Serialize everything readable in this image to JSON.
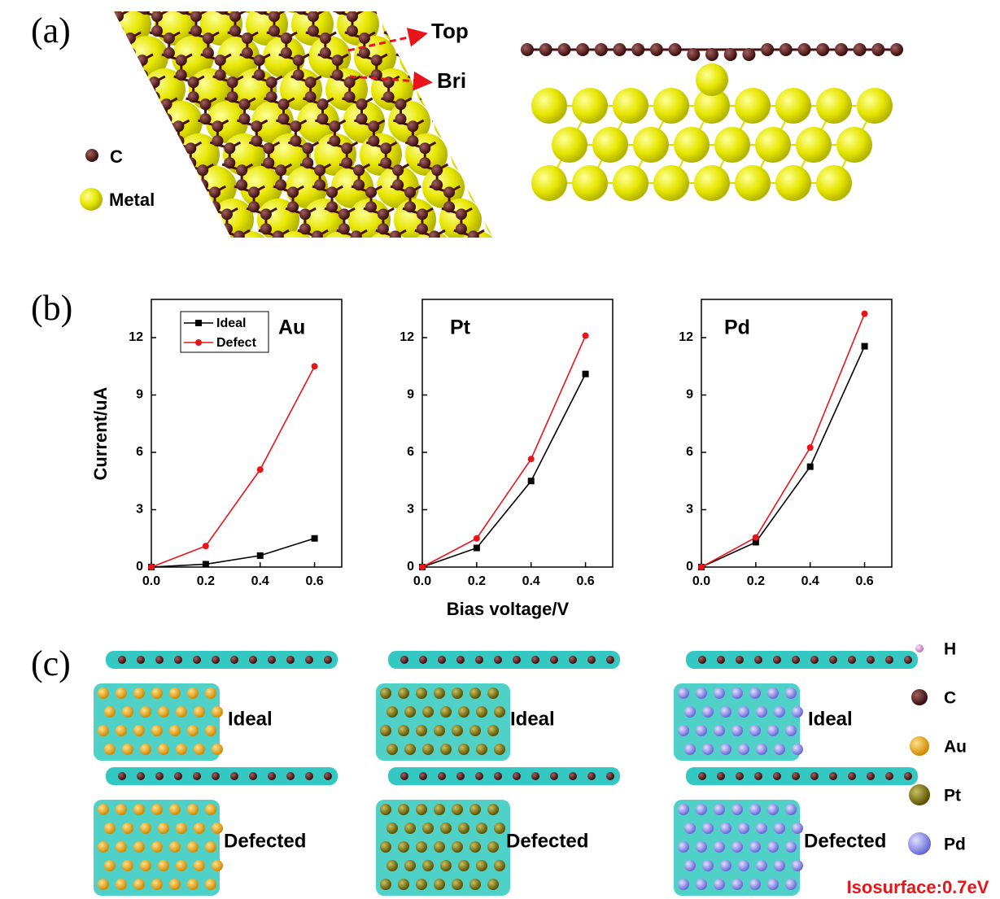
{
  "panels": {
    "a": "(a)",
    "b": "(b)",
    "c": "(c)"
  },
  "panel_a": {
    "legend": [
      "C",
      "Metal"
    ],
    "sites": [
      "Top",
      "Bri"
    ]
  },
  "panel_c": {
    "rows": [
      "Ideal",
      "Defected"
    ],
    "legend": [
      "H",
      "C",
      "Au",
      "Pt",
      "Pd"
    ],
    "note": "Isosurface:0.7eV"
  },
  "chart_data": [
    {
      "type": "line",
      "title": "Au",
      "y_label": "Current/uA",
      "legend": true,
      "x": [
        0,
        0.2,
        0.4,
        0.6
      ],
      "xlim": [
        0,
        0.7
      ],
      "xticks": [
        {
          "value": 0,
          "label": "0.0"
        },
        0.2,
        0.4,
        0.6
      ],
      "ylim": [
        0,
        14
      ],
      "yticks": [
        0,
        3,
        6,
        9,
        12
      ],
      "series": [
        {
          "name": "Ideal",
          "color": "#000000",
          "marker": "square",
          "values": [
            0,
            0.15,
            0.6,
            1.5
          ]
        },
        {
          "name": "Defect",
          "color": "#e8141a",
          "marker": "circle",
          "values": [
            0,
            1.1,
            5.1,
            10.5
          ]
        }
      ]
    },
    {
      "type": "line",
      "title": "Pt",
      "x_label": "Bias voltage/V",
      "legend": false,
      "x": [
        0,
        0.2,
        0.4,
        0.6
      ],
      "xlim": [
        0,
        0.7
      ],
      "xticks": [
        {
          "value": 0,
          "label": "0.0"
        },
        0.2,
        0.4,
        0.6
      ],
      "ylim": [
        0,
        14
      ],
      "yticks": [
        0,
        3,
        6,
        9,
        12
      ],
      "series": [
        {
          "color": "#000000",
          "marker": "square",
          "values": [
            0,
            1.0,
            4.5,
            10.1
          ]
        },
        {
          "color": "#e8141a",
          "marker": "circle",
          "values": [
            0,
            1.5,
            5.65,
            12.1
          ]
        }
      ]
    },
    {
      "type": "line",
      "title": "Pd",
      "legend": false,
      "x": [
        0,
        0.2,
        0.4,
        0.6
      ],
      "xlim": [
        0,
        0.7
      ],
      "xticks": [
        {
          "value": 0,
          "label": "0.0"
        },
        0.2,
        0.4,
        0.6
      ],
      "ylim": [
        0,
        14
      ],
      "yticks": [
        0,
        3,
        6,
        9,
        12
      ],
      "series": [
        {
          "color": "#000000",
          "marker": "square",
          "values": [
            0,
            1.3,
            5.25,
            11.55
          ]
        },
        {
          "color": "#e8141a",
          "marker": "circle",
          "values": [
            0,
            1.55,
            6.25,
            13.25
          ]
        }
      ]
    }
  ]
}
